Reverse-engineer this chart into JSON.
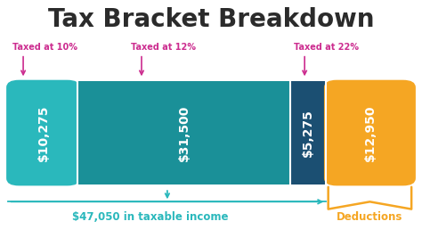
{
  "title": "Tax Bracket Breakdown",
  "title_fontsize": 20,
  "background_color": "#ffffff",
  "bars": [
    {
      "label": "$10,275",
      "value": 10275,
      "color": "#2ab8bc",
      "tax_label": "Taxed at 10%"
    },
    {
      "label": "$31,500",
      "value": 31500,
      "color": "#1a9098",
      "tax_label": "Taxed at 12%"
    },
    {
      "label": "$5,275",
      "value": 5275,
      "color": "#1b4f72",
      "tax_label": "Taxed at 22%"
    },
    {
      "label": "$12,950",
      "value": 12950,
      "color": "#f5a623",
      "tax_label": null
    }
  ],
  "taxable_income_label": "$47,050 in taxable income",
  "deductions_label": "Deductions",
  "label_color_taxable": "#2ab8bc",
  "label_color_deductions": "#f5a623",
  "tax_label_color": "#cc2c8f",
  "arrow_color": "#cc2c8f",
  "bar_label_fontsize": 10,
  "annotation_fontsize": 7.0
}
